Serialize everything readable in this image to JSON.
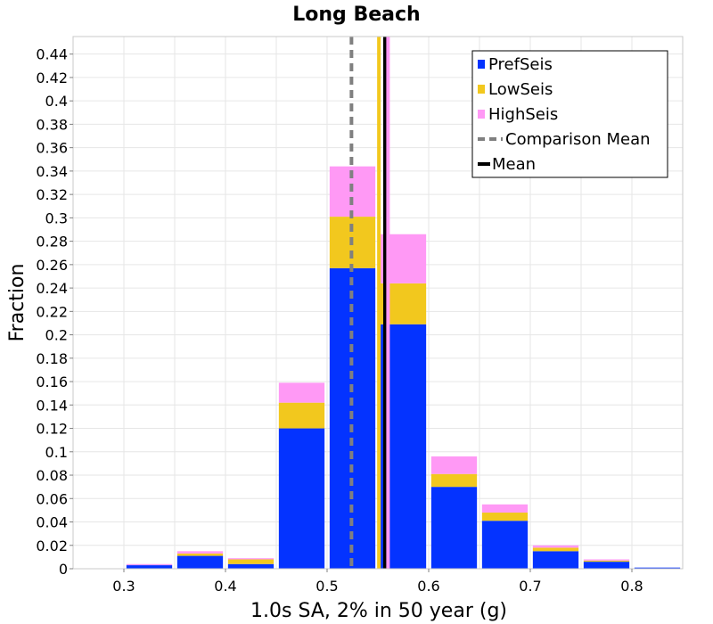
{
  "chart_data": {
    "type": "bar",
    "stacked": true,
    "title": "Long Beach",
    "xlabel": "1.0s SA, 2% in 50 year (g)",
    "ylabel": "Fraction",
    "xlim": [
      0.25,
      0.85
    ],
    "ylim": [
      0,
      0.455
    ],
    "bin_width": 0.05,
    "bin_centers": [
      0.325,
      0.375,
      0.425,
      0.475,
      0.525,
      0.575,
      0.625,
      0.675,
      0.725,
      0.775,
      0.825
    ],
    "x_ticks": [
      "0.3",
      "0.4",
      "0.5",
      "0.6",
      "0.7",
      "0.8"
    ],
    "x_tick_values": [
      0.3,
      0.4,
      0.5,
      0.6,
      0.7,
      0.8
    ],
    "y_ticks": [
      "0",
      "0.02",
      "0.04",
      "0.06",
      "0.08",
      "0.1",
      "0.12",
      "0.14",
      "0.16",
      "0.18",
      "0.2",
      "0.22",
      "0.24",
      "0.26",
      "0.28",
      "0.3",
      "0.32",
      "0.34",
      "0.36",
      "0.38",
      "0.4",
      "0.42",
      "0.44"
    ],
    "y_tick_values": [
      0,
      0.02,
      0.04,
      0.06,
      0.08,
      0.1,
      0.12,
      0.14,
      0.16,
      0.18,
      0.2,
      0.22,
      0.24,
      0.26,
      0.28,
      0.3,
      0.32,
      0.34,
      0.36,
      0.38,
      0.4,
      0.42,
      0.44
    ],
    "grid": true,
    "legend_position": "top-right",
    "series": [
      {
        "name": "PrefSeis",
        "color": "#0433ff",
        "values": [
          0.003,
          0.011,
          0.004,
          0.12,
          0.257,
          0.209,
          0.07,
          0.041,
          0.015,
          0.006,
          0.001
        ]
      },
      {
        "name": "LowSeis",
        "color": "#f2c81e",
        "values": [
          0.0,
          0.002,
          0.004,
          0.022,
          0.044,
          0.035,
          0.011,
          0.007,
          0.003,
          0.001,
          0.0
        ]
      },
      {
        "name": "HighSeis",
        "color": "#ff99f5",
        "values": [
          0.001,
          0.002,
          0.001,
          0.017,
          0.043,
          0.042,
          0.015,
          0.007,
          0.002,
          0.001,
          0.0
        ]
      }
    ],
    "vertical_lines": [
      {
        "name": "Comparison Mean",
        "x": 0.524,
        "color": "#808080",
        "style": "dashed"
      },
      {
        "name": "Mean",
        "x": 0.557,
        "color": "#000000",
        "style": "solid"
      },
      {
        "name": "",
        "x": 0.551,
        "color": "#f2c81e",
        "style": "solid"
      },
      {
        "name": "",
        "x": 0.56,
        "color": "#ff99f5",
        "style": "solid"
      }
    ],
    "legend": [
      {
        "label": "PrefSeis",
        "kind": "box",
        "color": "#0433ff"
      },
      {
        "label": "LowSeis",
        "kind": "box",
        "color": "#f2c81e"
      },
      {
        "label": "HighSeis",
        "kind": "box",
        "color": "#ff99f5"
      },
      {
        "label": "Comparison Mean",
        "kind": "dash",
        "color": "#808080"
      },
      {
        "label": "Mean",
        "kind": "line",
        "color": "#000000"
      }
    ]
  }
}
